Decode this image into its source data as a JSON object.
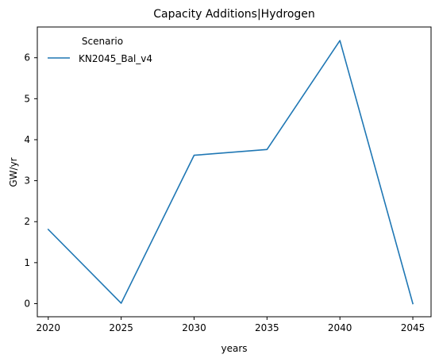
{
  "chart_data": {
    "type": "line",
    "title": "Capacity Additions|Hydrogen",
    "xlabel": "years",
    "ylabel": "GW/yr",
    "x": [
      2020,
      2025,
      2030,
      2035,
      2040,
      2045
    ],
    "x_tick_labels": [
      "2020",
      "2025",
      "2030",
      "2035",
      "2040",
      "2045"
    ],
    "y_ticks": [
      0,
      1,
      2,
      3,
      4,
      5,
      6
    ],
    "y_tick_labels": [
      "0",
      "1",
      "2",
      "3",
      "4",
      "5",
      "6"
    ],
    "xlim": [
      2019.25,
      2046.25
    ],
    "ylim": [
      -0.32,
      6.75
    ],
    "grid": false,
    "legend": {
      "title": "Scenario",
      "placement": "top-left"
    },
    "series": [
      {
        "name": "KN2045_Bal_v4",
        "color": "#1f77b4",
        "values": [
          1.81,
          0.01,
          3.62,
          3.76,
          6.42,
          0.0
        ]
      }
    ]
  }
}
